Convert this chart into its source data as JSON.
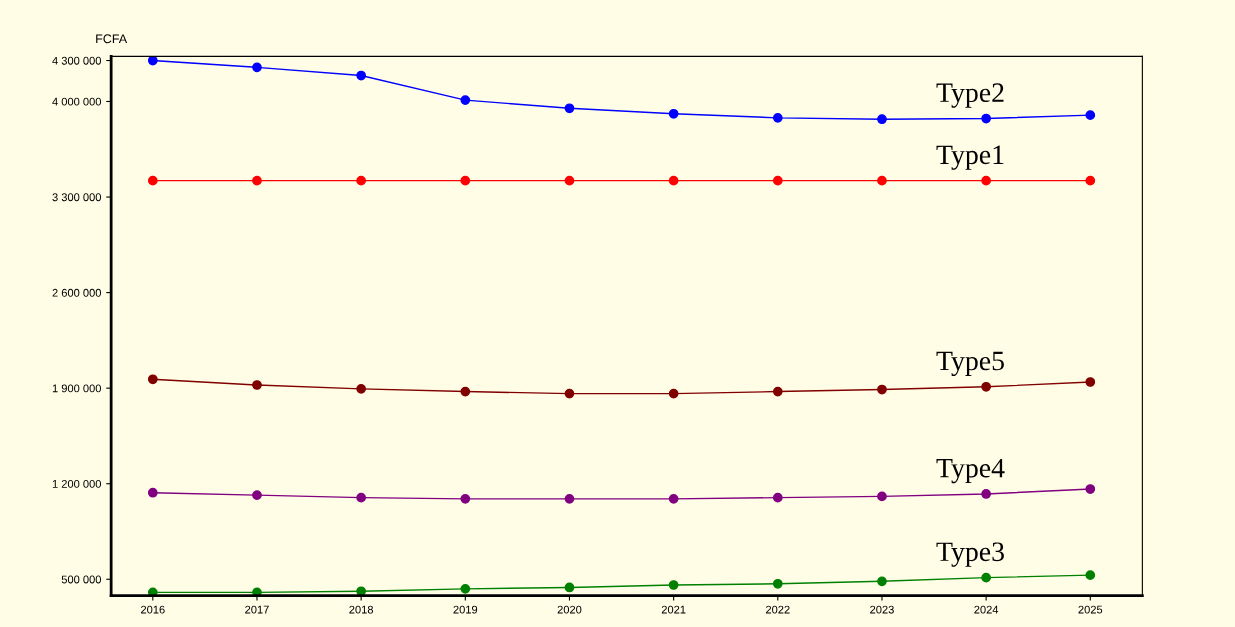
{
  "chart_data": {
    "type": "line",
    "ylabel": "FCFA",
    "categories": [
      "2016",
      "2017",
      "2018",
      "2019",
      "2020",
      "2021",
      "2022",
      "2023",
      "2024",
      "2025"
    ],
    "series": [
      {
        "name": "Type2",
        "color": "#0000ff",
        "values": [
          4300000,
          4250000,
          4190000,
          4010000,
          3950000,
          3910000,
          3880000,
          3870000,
          3875000,
          3900000
        ]
      },
      {
        "name": "Type1",
        "color": "#ff0000",
        "values": [
          3420000,
          3420000,
          3420000,
          3420000,
          3420000,
          3420000,
          3420000,
          3420000,
          3420000,
          3420000
        ]
      },
      {
        "name": "Type5",
        "color": "#800000",
        "values": [
          1965000,
          1923000,
          1895000,
          1875000,
          1860000,
          1860000,
          1875000,
          1890000,
          1910000,
          1945000
        ]
      },
      {
        "name": "Type4",
        "color": "#800080",
        "values": [
          1134000,
          1116000,
          1098000,
          1089000,
          1089000,
          1089000,
          1098000,
          1107000,
          1125000,
          1161000
        ]
      },
      {
        "name": "Type3",
        "color": "#008000",
        "values": [
          404000,
          404000,
          412000,
          430000,
          440000,
          458000,
          467000,
          485000,
          512000,
          530000
        ]
      }
    ],
    "ylim": [
      380000,
      4330000
    ],
    "yticks": [
      {
        "value": 500000,
        "label": "500 000"
      },
      {
        "value": 1200000,
        "label": "1 200 000"
      },
      {
        "value": 1900000,
        "label": "1 900 000"
      },
      {
        "value": 2600000,
        "label": "2 600 000"
      },
      {
        "value": 3300000,
        "label": "3 300 000"
      },
      {
        "value": 4000000,
        "label": "4 000 000"
      },
      {
        "value": 4300000,
        "label": "4 300 000"
      }
    ],
    "grid": false,
    "legend": false,
    "marker": "circle",
    "line_style": "solid"
  }
}
